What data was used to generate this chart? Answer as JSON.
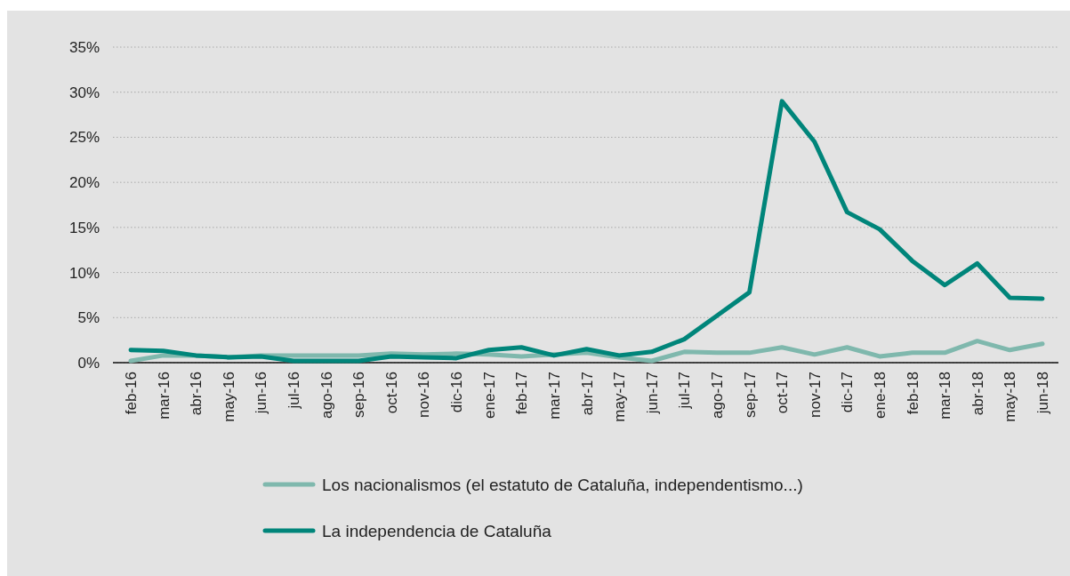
{
  "chart_data": {
    "type": "line",
    "categories": [
      "feb-16",
      "mar-16",
      "abr-16",
      "may-16",
      "jun-16",
      "jul-16",
      "ago-16",
      "sep-16",
      "oct-16",
      "nov-16",
      "dic-16",
      "ene-17",
      "feb-17",
      "mar-17",
      "abr-17",
      "may-17",
      "jun-17",
      "jul-17",
      "ago-17",
      "sep-17",
      "oct-17",
      "nov-17",
      "dic-17",
      "ene-18",
      "feb-18",
      "mar-18",
      "abr-18",
      "may-18",
      "jun-18"
    ],
    "series": [
      {
        "name": "Los nacionalismos (el estatuto de Cataluña, independentismo...)",
        "color": "#7fb8ad",
        "values": [
          0.2,
          0.8,
          0.8,
          0.6,
          0.8,
          0.8,
          0.8,
          0.8,
          1.0,
          0.9,
          1.0,
          0.9,
          0.7,
          0.9,
          1.1,
          0.6,
          0.2,
          1.2,
          1.1,
          1.1,
          1.7,
          0.9,
          1.7,
          0.7,
          1.1,
          1.1,
          2.4,
          1.4,
          2.1
        ]
      },
      {
        "name": "La independencia de Cataluña",
        "color": "#00857a",
        "values": [
          1.4,
          1.3,
          0.8,
          0.6,
          0.7,
          0.2,
          0.2,
          0.2,
          0.7,
          0.6,
          0.5,
          1.4,
          1.7,
          0.8,
          1.5,
          0.8,
          1.2,
          2.6,
          5.2,
          7.8,
          29,
          24.5,
          16.7,
          14.8,
          11.3,
          8.6,
          11.0,
          7.2,
          7.1
        ]
      }
    ],
    "ylim": [
      0,
      35
    ],
    "yticks": [
      {
        "value": 0,
        "label": "0%"
      },
      {
        "value": 5,
        "label": "5%"
      },
      {
        "value": 10,
        "label": "10%"
      },
      {
        "value": 15,
        "label": "15%"
      },
      {
        "value": 20,
        "label": "20%"
      },
      {
        "value": 25,
        "label": "25%"
      },
      {
        "value": 30,
        "label": "30%"
      },
      {
        "value": 35,
        "label": "35%"
      }
    ],
    "grid": "y",
    "legend": "bottom",
    "marker": "none",
    "line_style": "solid"
  }
}
